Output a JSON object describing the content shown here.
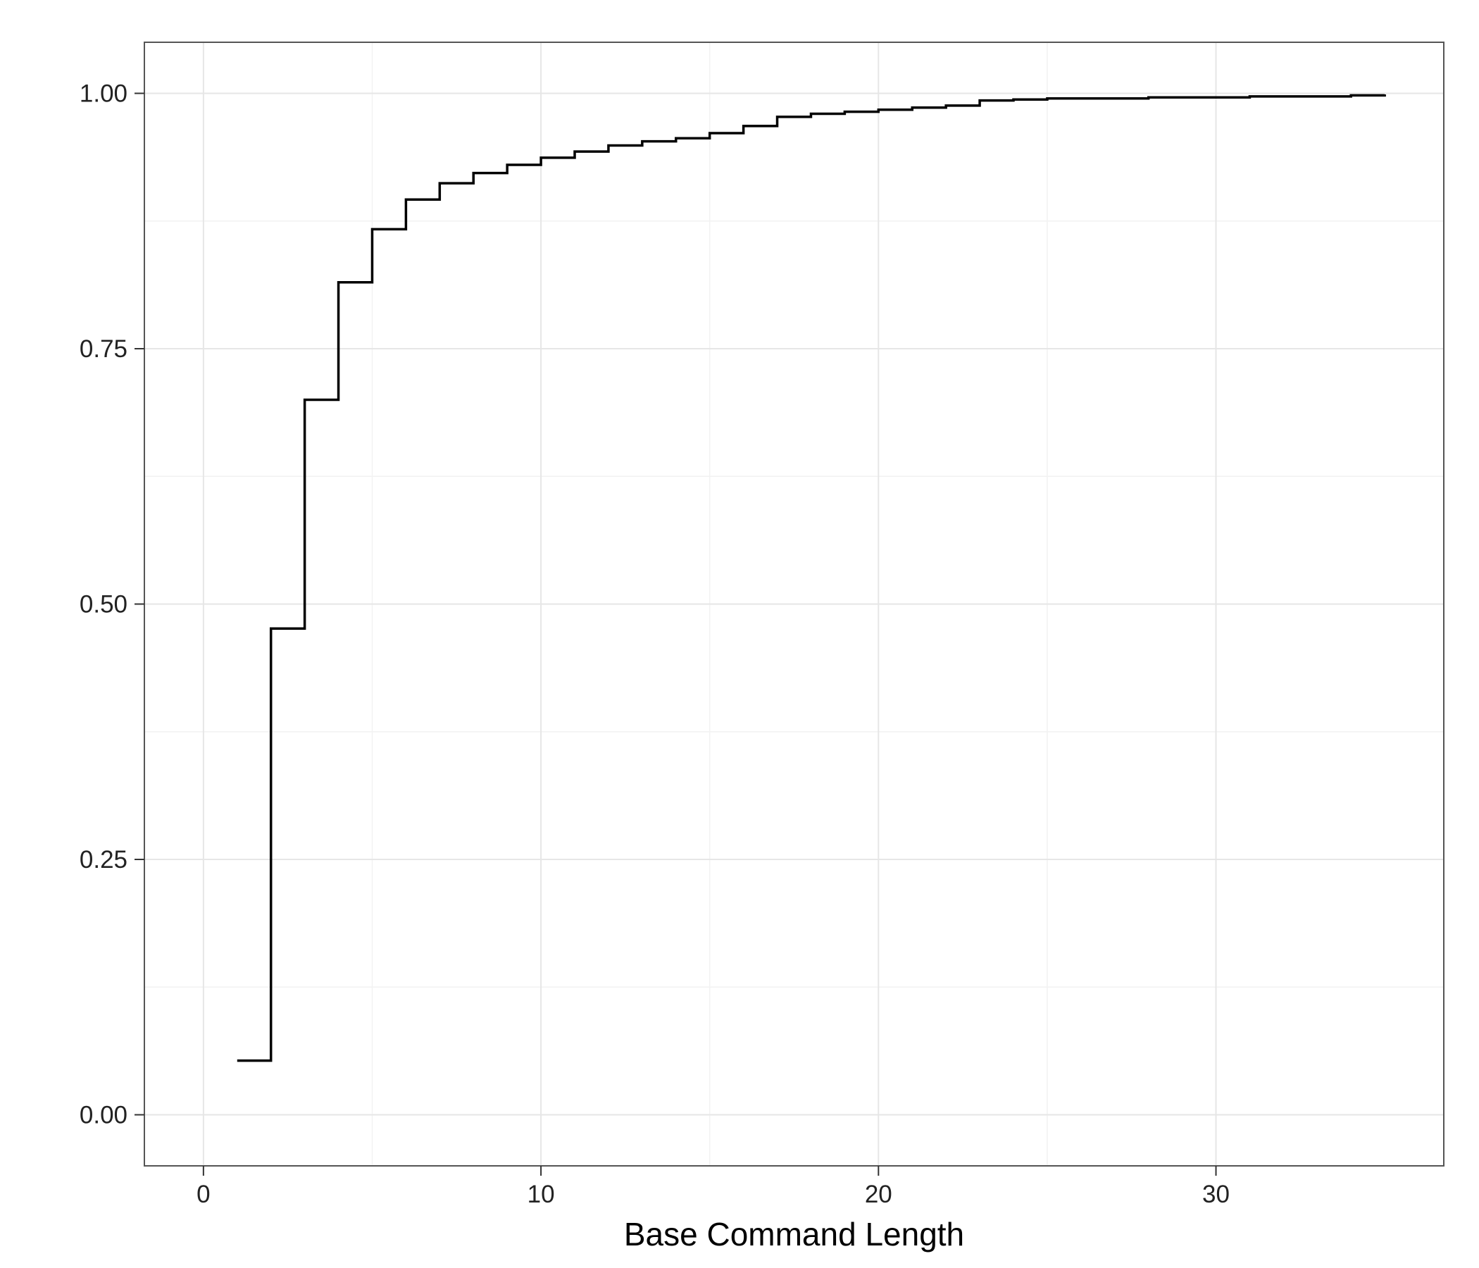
{
  "chart_data": {
    "type": "line",
    "step": true,
    "title": "",
    "xlabel": "Base Command Length",
    "ylabel": "",
    "xlim": [
      -1.75,
      36.75
    ],
    "ylim": [
      -0.05,
      1.05
    ],
    "x_ticks": [
      0,
      10,
      20,
      30
    ],
    "x_tick_labels": [
      "0",
      "10",
      "20",
      "30"
    ],
    "y_ticks": [
      0,
      0.25,
      0.5,
      0.75,
      1
    ],
    "y_tick_labels": [
      "0.00",
      "0.25",
      "0.50",
      "0.75",
      "1.00"
    ],
    "grid": true,
    "legend": "none",
    "colors": {
      "line": "#000000",
      "panel_border": "#555555",
      "grid": "#e6e6e6",
      "grid_minor": "#f2f2f2",
      "tick_text": "#222222"
    },
    "series": [
      {
        "x": [
          1,
          2,
          3,
          4,
          5,
          6,
          7,
          8,
          9,
          10,
          11,
          12,
          13,
          14,
          15,
          16,
          17,
          18,
          19,
          20,
          21,
          22,
          23,
          24,
          25,
          26,
          27,
          28,
          29,
          30,
          31,
          32,
          33,
          34,
          35
        ],
        "y": [
          0.053,
          0.476,
          0.7,
          0.815,
          0.867,
          0.896,
          0.912,
          0.922,
          0.93,
          0.937,
          0.943,
          0.949,
          0.953,
          0.956,
          0.961,
          0.968,
          0.977,
          0.98,
          0.982,
          0.984,
          0.986,
          0.988,
          0.993,
          0.994,
          0.995,
          0.995,
          0.995,
          0.996,
          0.996,
          0.996,
          0.997,
          0.997,
          0.997,
          0.998,
          0.999
        ]
      }
    ]
  }
}
